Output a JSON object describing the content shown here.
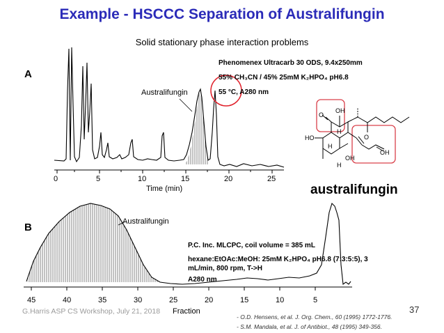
{
  "slide": {
    "title": "Example - HSCCC Separation of Australifungin",
    "subtitle": "Solid stationary phase interaction problems",
    "slide_number": "37",
    "footer": "G.Harris ASP CS Workshop, July 21, 2018"
  },
  "panel_a": {
    "label": "A",
    "peak_label": "Australifungin",
    "x_ticks": [
      "0",
      "5",
      "10",
      "15",
      "20",
      "25"
    ],
    "x_axis_label": "Time (min)",
    "conditions": {
      "line1": "Phenomenex Ultracarb 30 ODS, 9.4x250mm",
      "line2": "55% CH₃CN / 45% 25mM K₂HPO₄ pH6.8",
      "line3": "55 °C, A280 nm"
    }
  },
  "panel_b": {
    "label": "B",
    "peak_label": "Australifungin",
    "x_ticks": [
      "45",
      "40",
      "35",
      "30",
      "25",
      "20",
      "15",
      "10",
      "5"
    ],
    "x_axis_label": "Fraction",
    "conditions": {
      "line1": "P.C. Inc. MLCPC, coil volume = 385 mL",
      "line2": "hexane:EtOAc:MeOH: 25mM K₂HPO₄ pH6.8 (7:3:5:5), 3 mL/min, 800 rpm, T->H",
      "line3": "A280 nm"
    }
  },
  "structure": {
    "name": "australifungin",
    "atoms": [
      "OH",
      "H",
      "HO",
      "O",
      "O",
      "OH",
      "H",
      "H",
      "OH",
      "O"
    ]
  },
  "references": {
    "ref1": "- O.D. Hensens, et al.  J. Org. Chem., 60 (1995) 1772-1776.",
    "ref2": "- S.M. Mandala, et al.  J. of Antibiot., 48 (1995) 349-356."
  },
  "colors": {
    "title": "#2b2bb8",
    "highlight_circle": "#e0202a",
    "highlight_box": "#d9404a"
  }
}
